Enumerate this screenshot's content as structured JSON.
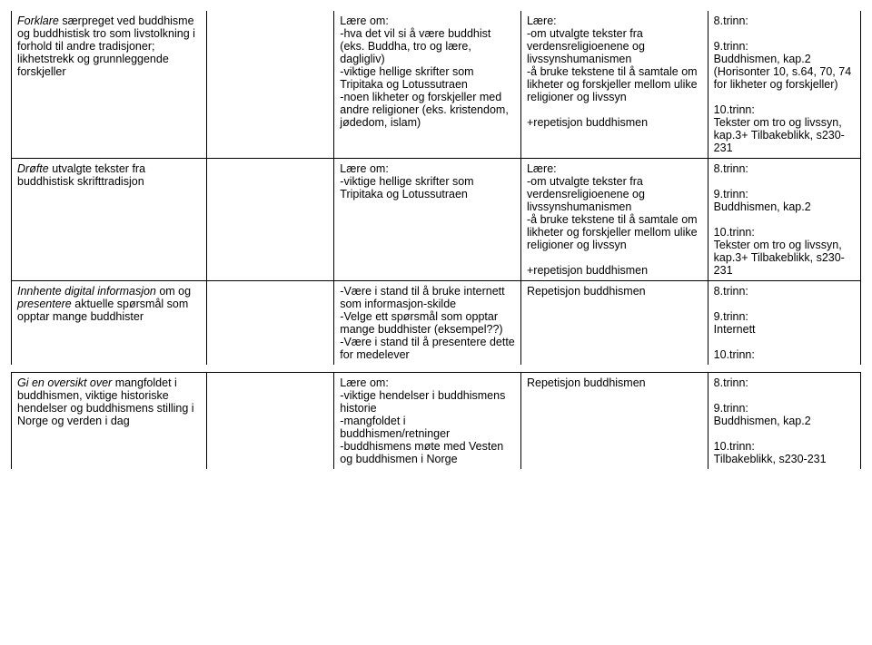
{
  "table": {
    "rows": [
      {
        "col1": "<span class=\"italic\">Forklare</span> særpreget ved buddhisme og buddhistisk tro som livstolkning i forhold til andre tradisjoner; likhetstrekk og grunnleggende forskjeller",
        "col2": "",
        "col3": "Lære om:\n-hva det vil si å være buddhist (eks. Buddha, tro og lære, dagligliv)\n-viktige hellige skrifter som Tripitaka og Lotussutraen\n-noen likheter og forskjeller med andre religioner (eks. kristendom, jødedom, islam)",
        "col4": "Lære:\n-om utvalgte tekster fra verdensreligioenene og livssynshumanismen\n-å bruke tekstene til å samtale om likheter og forskjeller mellom ulike religioner og livssyn\n\n+repetisjon buddhismen",
        "col5": "8.trinn:\n\n9.trinn:\nBuddhismen, kap.2 (Horisonter 10, s.64, 70, 74 for likheter og forskjeller)\n\n10.trinn:\nTekster om tro og livssyn, kap.3+ Tilbakeblikk, s230-231"
      },
      {
        "col1": "<span class=\"italic\">Drøfte</span> utvalgte tekster fra buddhistisk skrifttradisjon",
        "col2": "",
        "col3": "Lære om:\n-viktige hellige skrifter som Tripitaka og Lotussutraen",
        "col4": "Lære:\n-om utvalgte tekster fra verdensreligioenene og livssynshumanismen\n-å bruke tekstene til å samtale om likheter og forskjeller mellom ulike religioner og livssyn\n\n+repetisjon buddhismen",
        "col5": "8.trinn:\n\n9.trinn:\nBuddhismen, kap.2\n\n10.trinn:\nTekster om tro og livssyn, kap.3+ Tilbakeblikk, s230-231"
      },
      {
        "col1": "<span class=\"italic\">Innhente digital informasjon</span> om og <span class=\"italic\">presentere</span> aktuelle spørsmål som opptar mange buddhister",
        "col2": "",
        "col3": "-Være i stand til å bruke internett som informasjon-skilde\n-Velge ett spørsmål som opptar mange buddhister (eksempel??)\n-Være i stand til å presentere dette for medelever",
        "col4": "Repetisjon buddhismen",
        "col5": "8.trinn:\n\n9.trinn:\nInternett\n\n10.trinn:"
      },
      {
        "col1": "<span class=\"italic\">Gi en oversikt over</span> mangfoldet i buddhismen, viktige historiske hendelser og buddhismens stilling i Norge og verden i dag",
        "col2": "",
        "col3": "Lære om:\n-viktige hendelser i buddhismens historie\n-mangfoldet i buddhismen/retninger\n-buddhismens møte med Vesten og buddhismen i Norge",
        "col4": "Repetisjon buddhismen",
        "col5": "8.trinn:\n\n9.trinn:\nBuddhismen, kap.2\n\n10.trinn:\nTilbakeblikk, s230-231"
      }
    ]
  }
}
